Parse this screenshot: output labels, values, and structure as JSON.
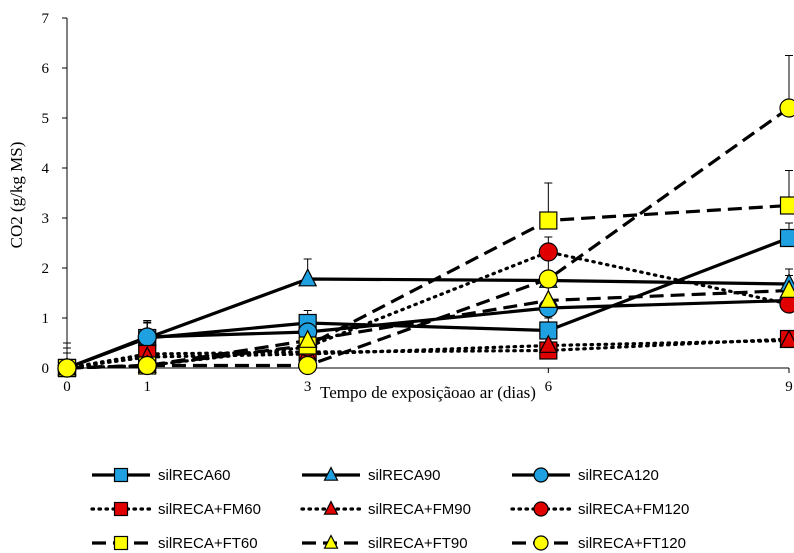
{
  "chart_data": {
    "type": "line",
    "title": "",
    "xlabel": "Tempo de exposiçãoao ar (dias)",
    "ylabel": "CO2 (g/kg MS)",
    "x": [
      0,
      1,
      3,
      6,
      9
    ],
    "x_ticks": [
      "0",
      "1",
      "3",
      "6",
      "9"
    ],
    "y_ticks": [
      "0",
      "1",
      "2",
      "3",
      "4",
      "5",
      "6",
      "7"
    ],
    "ylim": [
      0,
      7
    ],
    "grid": false,
    "legend_position": "bottom",
    "series": [
      {
        "name": "silRECA60",
        "marker": "square",
        "fill": "#1fa0e0",
        "line": "solid",
        "values": [
          0,
          0.6,
          0.9,
          0.75,
          2.6
        ],
        "errors": [
          0.5,
          0.35,
          0.25,
          0.25,
          0.3
        ]
      },
      {
        "name": "silRECA90",
        "marker": "triangle",
        "fill": "#1fa0e0",
        "line": "solid",
        "values": [
          0,
          0.6,
          1.78,
          1.75,
          1.68
        ],
        "errors": [
          0.4,
          0.3,
          0.4,
          0.2,
          0.3
        ]
      },
      {
        "name": "silRECA120",
        "marker": "circle",
        "fill": "#1fa0e0",
        "line": "solid",
        "values": [
          0,
          0.62,
          0.72,
          1.2,
          1.35
        ],
        "errors": [
          0.4,
          0.3,
          0.2,
          0.2,
          0.25
        ]
      },
      {
        "name": "silRECA+FM60",
        "marker": "square",
        "fill": "#e00000",
        "line": "dotted",
        "values": [
          0,
          0.28,
          0.32,
          0.35,
          0.58
        ],
        "errors": [
          0.3,
          0.2,
          0.15,
          0.15,
          0.15
        ]
      },
      {
        "name": "silRECA+FM90",
        "marker": "triangle",
        "fill": "#e00000",
        "line": "dotted",
        "values": [
          0,
          0.22,
          0.28,
          0.45,
          0.55
        ],
        "errors": [
          0.3,
          0.2,
          0.15,
          0.15,
          0.15
        ]
      },
      {
        "name": "silRECA+FM120",
        "marker": "circle",
        "fill": "#e00000",
        "line": "dotted",
        "values": [
          0,
          0.05,
          0.42,
          2.32,
          1.28
        ],
        "errors": [
          0.3,
          0.2,
          0.15,
          0.3,
          0.3
        ]
      },
      {
        "name": "silRECA+FT60",
        "marker": "square",
        "fill": "#ffff00",
        "line": "dashed",
        "values": [
          0,
          0.05,
          0.45,
          2.95,
          3.25
        ],
        "errors": [
          0.3,
          0.2,
          0.2,
          0.75,
          0.7
        ]
      },
      {
        "name": "silRECA+FT90",
        "marker": "triangle",
        "fill": "#ffff00",
        "line": "dashed",
        "values": [
          0,
          0.05,
          0.55,
          1.35,
          1.55
        ],
        "errors": [
          0.3,
          0.2,
          0.2,
          0.3,
          0.3
        ]
      },
      {
        "name": "silRECA+FT120",
        "marker": "circle",
        "fill": "#ffff00",
        "line": "dashed",
        "values": [
          0,
          0.05,
          0.05,
          1.78,
          5.2
        ],
        "errors": [
          0.3,
          0.2,
          0.15,
          0.4,
          1.05
        ]
      }
    ]
  }
}
